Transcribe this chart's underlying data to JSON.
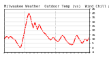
{
  "title": "Milwaukee Weather  Outdoor Temp (vs)  Wind Chill per Minute  (Last 24 Hours)",
  "line_color": "#ff0000",
  "bg_color": "#ffffff",
  "grid_color": "#cccccc",
  "vline_color": "#999999",
  "y_values": [
    10,
    11,
    12,
    12,
    13,
    13,
    12,
    12,
    11,
    11,
    12,
    13,
    13,
    12,
    12,
    11,
    11,
    10,
    10,
    9,
    9,
    8,
    7,
    6,
    5,
    4,
    3,
    2,
    1,
    0,
    0,
    1,
    3,
    5,
    8,
    11,
    14,
    17,
    20,
    23,
    26,
    29,
    32,
    35,
    37,
    39,
    40,
    39,
    37,
    35,
    32,
    30,
    27,
    25,
    23,
    25,
    27,
    29,
    28,
    26,
    24,
    22,
    21,
    23,
    25,
    27,
    26,
    25,
    23,
    22,
    21,
    20,
    19,
    18,
    17,
    17,
    16,
    16,
    15,
    14,
    13,
    13,
    12,
    11,
    10,
    10,
    9,
    9,
    10,
    10,
    11,
    12,
    12,
    11,
    10,
    9,
    9,
    8,
    8,
    7,
    7,
    7,
    8,
    9,
    10,
    11,
    12,
    13,
    14,
    14,
    13,
    13,
    12,
    11,
    10,
    9,
    8,
    7,
    6,
    6,
    5,
    5,
    4,
    4,
    4,
    4,
    3,
    3,
    4,
    5,
    6,
    8,
    10,
    12,
    13,
    14,
    14,
    13,
    12,
    11,
    10,
    9,
    8,
    7,
    6,
    5,
    5,
    6,
    7,
    8,
    9,
    10,
    10,
    9,
    8,
    8,
    9,
    10,
    11,
    12
  ],
  "ylim": [
    -5,
    45
  ],
  "yticks": [
    45,
    40,
    35,
    30,
    25,
    20,
    15,
    10,
    5,
    0,
    -5
  ],
  "ytick_labels": [
    "45",
    "40",
    "35",
    "30",
    "25",
    "20",
    "15",
    "10",
    "5",
    "0",
    "-5"
  ],
  "vlines": [
    38,
    95
  ],
  "line_width": 0.8,
  "line_style": "-.",
  "title_fontsize": 3.8,
  "tick_fontsize": 3.2,
  "num_xticks": 24
}
